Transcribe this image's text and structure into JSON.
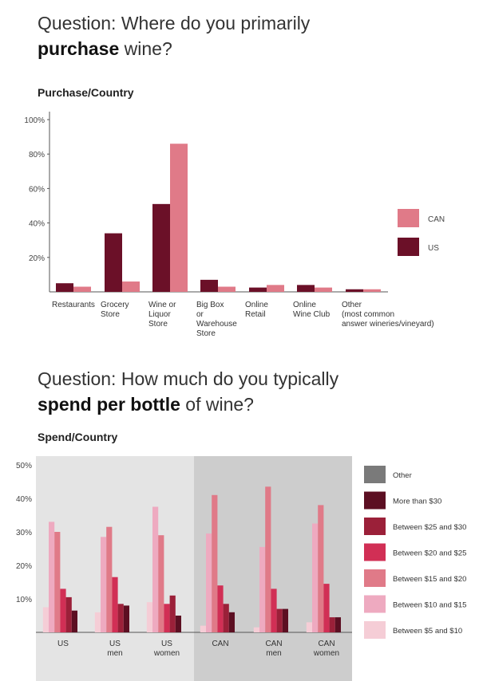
{
  "question1": {
    "line1": "Question: Where do you primarily",
    "line2_bold": "purchase",
    "line2_rest": " wine?"
  },
  "question2": {
    "line1": "Question: How much do you typically",
    "line2_bold": "spend per bottle",
    "line2_rest": " of wine?"
  },
  "chart_data": [
    {
      "type": "bar",
      "title": "Purchase/Country",
      "categories": [
        [
          "Restaurants"
        ],
        [
          "Grocery",
          "Store"
        ],
        [
          "Wine or",
          "Liquor",
          "Store"
        ],
        [
          "Big Box",
          "or",
          "Warehouse",
          "Store"
        ],
        [
          "Online",
          "Retail"
        ],
        [
          "Online",
          "Wine Club"
        ],
        [
          "Other",
          "(most common",
          "answer wineries/vineyard)"
        ]
      ],
      "yticks": [
        "100%",
        "80%",
        "60%",
        "40%",
        "20%"
      ],
      "ylim": [
        0,
        100
      ],
      "series": [
        {
          "name": "US",
          "color": "#6b1028",
          "values": [
            5,
            34,
            51,
            7,
            2.5,
            4,
            1.5
          ]
        },
        {
          "name": "CAN",
          "color": "#e07a88",
          "values": [
            3,
            6,
            86,
            3,
            4,
            2.5,
            1.5
          ]
        }
      ],
      "legend": [
        {
          "name": "CAN",
          "color": "#e07a88"
        },
        {
          "name": "US",
          "color": "#6b1028"
        }
      ]
    },
    {
      "type": "bar",
      "title": "Spend/Country",
      "categories": [
        [
          "US"
        ],
        [
          "US",
          "men"
        ],
        [
          "US",
          "women"
        ],
        [
          "CAN"
        ],
        [
          "CAN",
          "men"
        ],
        [
          "CAN",
          "women"
        ]
      ],
      "yticks": [
        "50%",
        "40%",
        "30%",
        "20%",
        "10%"
      ],
      "ylim": [
        0,
        50
      ],
      "panel_colors": {
        "US": "#e4e4e4",
        "CAN": "#cdcdcd"
      },
      "series": [
        {
          "name": "Between $5 and $10",
          "color": "#f5cdd6",
          "values": [
            7.5,
            6,
            9,
            2,
            1.5,
            3
          ]
        },
        {
          "name": "Between $10 and $15",
          "color": "#eeaac0",
          "values": [
            33,
            28.5,
            37.5,
            29.5,
            25.5,
            32.5
          ]
        },
        {
          "name": "Between $15 and $20",
          "color": "#e07a88",
          "values": [
            30,
            31.5,
            29,
            41,
            43.5,
            38
          ]
        },
        {
          "name": "Between $20 and $25",
          "color": "#d12f55",
          "values": [
            13,
            16.5,
            8.5,
            14,
            13,
            14.5
          ]
        },
        {
          "name": "Between $25 and $30",
          "color": "#9b2039",
          "values": [
            10.5,
            8.5,
            11,
            8.5,
            7,
            4.5
          ]
        },
        {
          "name": "More than $30",
          "color": "#5c0f22",
          "values": [
            6.5,
            8,
            5,
            6,
            7,
            4.5
          ]
        },
        {
          "name": "Other",
          "color": "#7a7a7a",
          "values": [
            0,
            0,
            0,
            0,
            0,
            0
          ]
        }
      ],
      "legend": [
        {
          "name": "Other",
          "color": "#7a7a7a"
        },
        {
          "name": "More than $30",
          "color": "#5c0f22"
        },
        {
          "name": "Between $25 and $30",
          "color": "#9b2039"
        },
        {
          "name": "Between $20 and $25",
          "color": "#d12f55"
        },
        {
          "name": "Between $15 and $20",
          "color": "#e07a88"
        },
        {
          "name": "Between $10 and $15",
          "color": "#eeaac0"
        },
        {
          "name": "Between $5 and $10",
          "color": "#f5cdd6"
        }
      ]
    }
  ]
}
